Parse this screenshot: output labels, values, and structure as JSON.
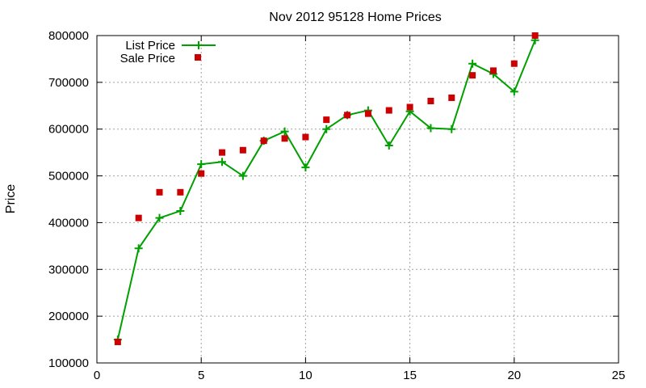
{
  "chart_data": {
    "type": "line",
    "title": "Nov 2012 95128 Home Prices",
    "xlabel": "",
    "ylabel": "Price",
    "xlim": [
      0,
      25
    ],
    "ylim": [
      100000,
      800000
    ],
    "x_ticks": [
      "0",
      "5",
      "10",
      "15",
      "20",
      "25"
    ],
    "y_ticks": [
      "100000",
      "200000",
      "300000",
      "400000",
      "500000",
      "600000",
      "700000",
      "800000"
    ],
    "x_tick_values": [
      0,
      5,
      10,
      15,
      20,
      25
    ],
    "y_tick_values": [
      100000,
      200000,
      300000,
      400000,
      500000,
      600000,
      700000,
      800000
    ],
    "grid": true,
    "legend_position": "top-left",
    "series": [
      {
        "name": "List Price",
        "style": "linespoints",
        "marker": "plus",
        "color": "#00a000",
        "x": [
          1,
          2,
          3,
          4,
          5,
          6,
          7,
          8,
          9,
          10,
          11,
          12,
          13,
          14,
          15,
          16,
          17,
          18,
          19,
          20,
          21
        ],
        "values": [
          150000,
          345000,
          410000,
          425000,
          525000,
          530000,
          500000,
          575000,
          595000,
          518000,
          600000,
          630000,
          640000,
          565000,
          638000,
          602000,
          600000,
          740000,
          718000,
          680000,
          790000
        ]
      },
      {
        "name": "Sale Price",
        "style": "points",
        "marker": "square",
        "color": "#cc0000",
        "x": [
          1,
          2,
          3,
          4,
          5,
          6,
          7,
          8,
          9,
          10,
          11,
          12,
          13,
          14,
          15,
          16,
          17,
          18,
          19,
          20,
          21
        ],
        "values": [
          145000,
          410000,
          465000,
          465000,
          505000,
          550000,
          555000,
          575000,
          580000,
          583000,
          620000,
          630000,
          633000,
          640000,
          647000,
          660000,
          667000,
          715000,
          725000,
          740000,
          800000
        ]
      }
    ]
  }
}
